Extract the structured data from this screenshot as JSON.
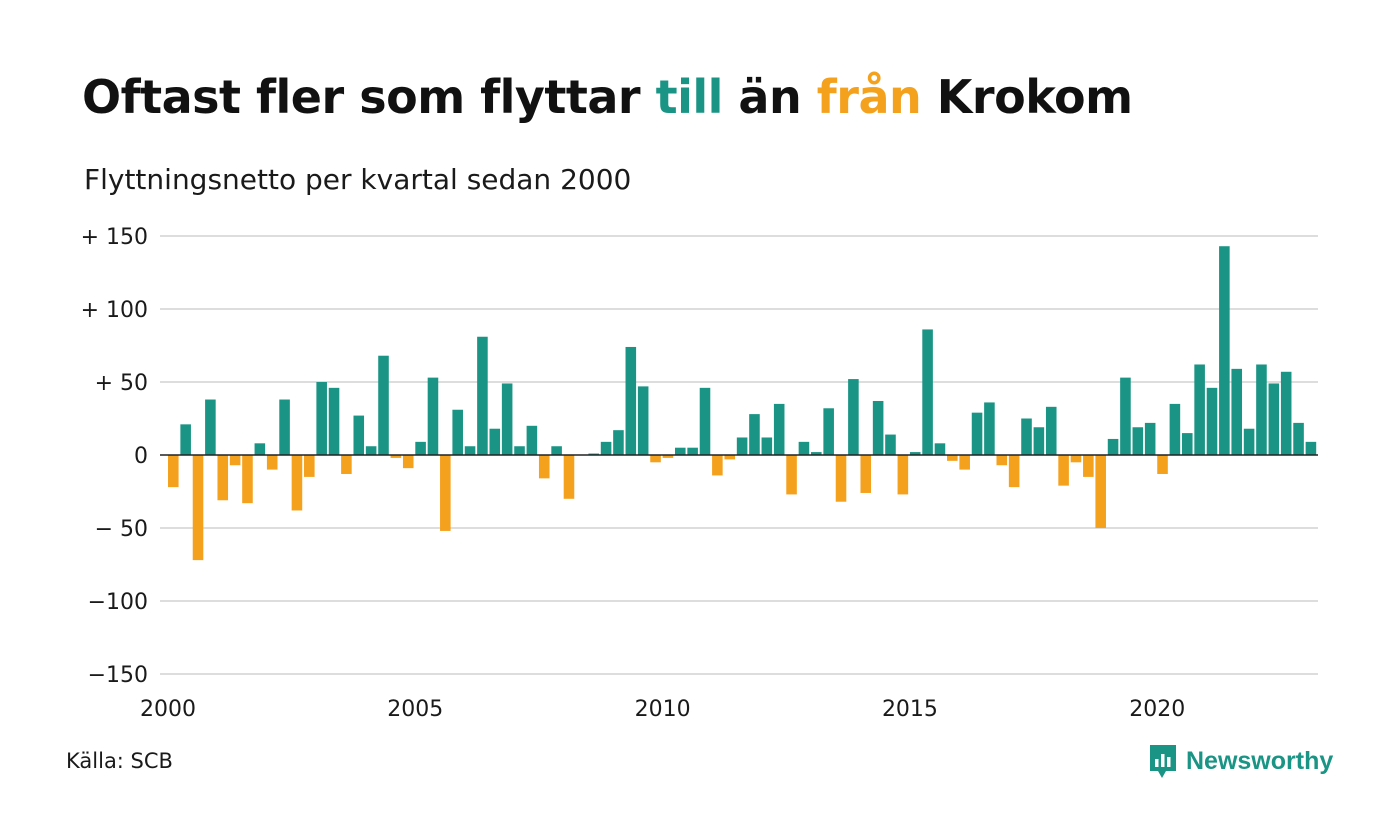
{
  "header": {
    "title_part1": "Oftast fler som flyttar ",
    "title_till": "till",
    "title_part2": " än ",
    "title_fran": "från",
    "title_part3": " Krokom",
    "subtitle": "Flyttningsnetto per kvartal sedan 2000"
  },
  "footer": {
    "source": "Källa: SCB",
    "brand": "Newsworthy"
  },
  "colors": {
    "positive": "#1a9485",
    "negative": "#f4a11e",
    "grid": "#dddddd",
    "zero_line": "#222222"
  },
  "chart_data": {
    "type": "bar",
    "ylim": [
      -150,
      150
    ],
    "yticks": [
      150,
      100,
      50,
      0,
      -50,
      -100,
      -150
    ],
    "ytick_labels": [
      "+ 150",
      "+ 100",
      "+  50",
      "0",
      "− 50",
      "−100",
      "−150"
    ],
    "xtick_labels": [
      "2000",
      "2005",
      "2010",
      "2015",
      "2020"
    ],
    "x_start_year": 2000,
    "grid": true,
    "values": [
      -22,
      21,
      -72,
      38,
      -31,
      -7,
      -33,
      8,
      -10,
      38,
      -38,
      -15,
      50,
      46,
      -13,
      27,
      6,
      68,
      -2,
      -9,
      9,
      53,
      -52,
      31,
      6,
      81,
      18,
      49,
      6,
      20,
      -16,
      6,
      -30,
      0,
      1,
      9,
      17,
      74,
      47,
      -5,
      -2,
      5,
      5,
      46,
      -14,
      -3,
      12,
      28,
      12,
      35,
      -27,
      9,
      2,
      32,
      -32,
      52,
      -26,
      37,
      14,
      -27,
      2,
      86,
      8,
      -4,
      -10,
      29,
      36,
      -7,
      -22,
      25,
      19,
      33,
      -21,
      -5,
      -15,
      -50,
      11,
      53,
      19,
      22,
      -13,
      35,
      15,
      62,
      46,
      143,
      59,
      18,
      62,
      49,
      57,
      22,
      9
    ]
  }
}
